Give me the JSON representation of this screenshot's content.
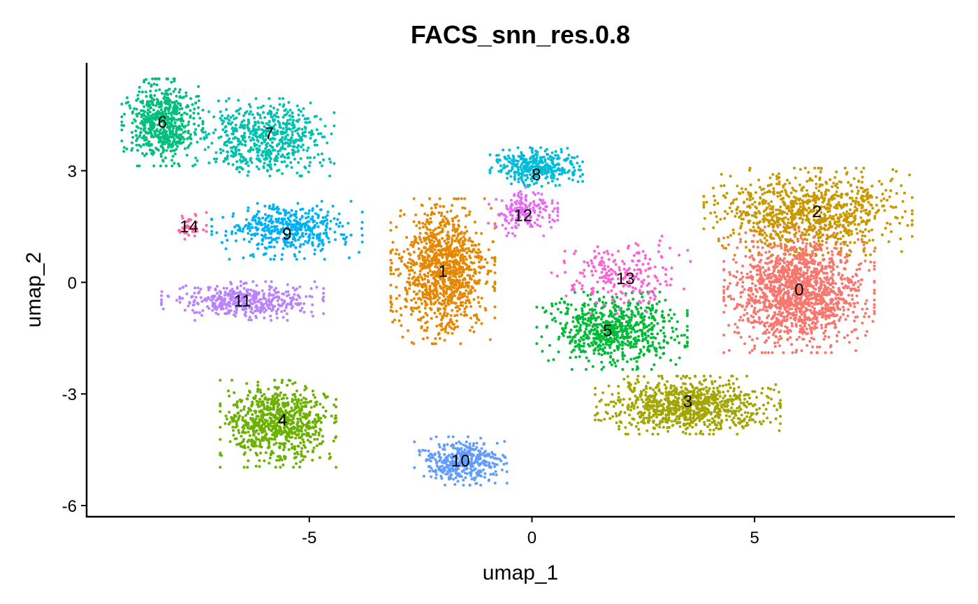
{
  "chart_data": {
    "type": "scatter",
    "title": "FACS_snn_res.0.8",
    "xlabel": "umap_1",
    "ylabel": "umap_2",
    "xlim": [
      -10,
      9.5
    ],
    "ylim": [
      -6.3,
      5.9
    ],
    "x_ticks": [
      {
        "value": -5,
        "label": "-5"
      },
      {
        "value": 0,
        "label": "0"
      },
      {
        "value": 5,
        "label": "5"
      }
    ],
    "y_ticks": [
      {
        "value": -6,
        "label": "-6"
      },
      {
        "value": -3,
        "label": "-3"
      },
      {
        "value": 0,
        "label": "0"
      },
      {
        "value": 3,
        "label": "3"
      }
    ],
    "grid": false,
    "legend": "none",
    "clusters": [
      {
        "id": "0",
        "label": "0",
        "color": "#F8766D",
        "center": [
          6.0,
          -0.2
        ],
        "spread": [
          1.3,
          1.3
        ],
        "count": 1500
      },
      {
        "id": "1",
        "label": "1",
        "color": "#E58700",
        "center": [
          -2.0,
          0.3
        ],
        "spread": [
          0.9,
          1.5
        ],
        "count": 1100
      },
      {
        "id": "2",
        "label": "2",
        "color": "#C99800",
        "center": [
          6.2,
          1.9
        ],
        "spread": [
          1.8,
          0.9
        ],
        "count": 900
      },
      {
        "id": "3",
        "label": "3",
        "color": "#A3A500",
        "center": [
          3.5,
          -3.3
        ],
        "spread": [
          1.6,
          0.6
        ],
        "count": 900
      },
      {
        "id": "4",
        "label": "4",
        "color": "#6BB100",
        "center": [
          -5.7,
          -3.8
        ],
        "spread": [
          1.0,
          0.9
        ],
        "count": 800
      },
      {
        "id": "5",
        "label": "5",
        "color": "#00BA38",
        "center": [
          1.8,
          -1.3
        ],
        "spread": [
          1.3,
          0.8
        ],
        "count": 700
      },
      {
        "id": "6",
        "label": "6",
        "color": "#00BF7D",
        "center": [
          -8.3,
          4.3
        ],
        "spread": [
          0.7,
          0.9
        ],
        "count": 600
      },
      {
        "id": "7",
        "label": "7",
        "color": "#00C0AF",
        "center": [
          -6.0,
          3.9
        ],
        "spread": [
          1.2,
          0.8
        ],
        "count": 600
      },
      {
        "id": "8",
        "label": "8",
        "color": "#00BCD8",
        "center": [
          0.1,
          3.1
        ],
        "spread": [
          0.8,
          0.4
        ],
        "count": 350
      },
      {
        "id": "9",
        "label": "9",
        "color": "#00B0F6",
        "center": [
          -5.5,
          1.4
        ],
        "spread": [
          1.3,
          0.6
        ],
        "count": 450
      },
      {
        "id": "10",
        "label": "10",
        "color": "#619CFF",
        "center": [
          -1.6,
          -4.8
        ],
        "spread": [
          0.8,
          0.5
        ],
        "count": 400
      },
      {
        "id": "11",
        "label": "11",
        "color": "#B983FF",
        "center": [
          -6.5,
          -0.5
        ],
        "spread": [
          1.4,
          0.4
        ],
        "count": 450
      },
      {
        "id": "12",
        "label": "12",
        "color": "#E76BF3",
        "center": [
          -0.2,
          1.9
        ],
        "spread": [
          0.6,
          0.5
        ],
        "count": 180
      },
      {
        "id": "13",
        "label": "13",
        "color": "#FD61D1",
        "center": [
          2.0,
          0.2
        ],
        "spread": [
          1.2,
          0.8
        ],
        "count": 220
      },
      {
        "id": "14",
        "label": "14",
        "color": "#FF67A4",
        "center": [
          -7.7,
          1.5
        ],
        "spread": [
          0.3,
          0.3
        ],
        "count": 40
      }
    ],
    "label_positions": [
      {
        "id": "0",
        "x": 6.0,
        "y": -0.2
      },
      {
        "id": "1",
        "x": -2.0,
        "y": 0.3
      },
      {
        "id": "2",
        "x": 6.4,
        "y": 1.9
      },
      {
        "id": "3",
        "x": 3.5,
        "y": -3.2
      },
      {
        "id": "4",
        "x": -5.6,
        "y": -3.7
      },
      {
        "id": "5",
        "x": 1.7,
        "y": -1.3
      },
      {
        "id": "6",
        "x": -8.3,
        "y": 4.3
      },
      {
        "id": "7",
        "x": -5.9,
        "y": 4.0
      },
      {
        "id": "8",
        "x": 0.1,
        "y": 2.9
      },
      {
        "id": "9",
        "x": -5.5,
        "y": 1.3
      },
      {
        "id": "10",
        "x": -1.6,
        "y": -4.8
      },
      {
        "id": "11",
        "x": -6.5,
        "y": -0.5
      },
      {
        "id": "12",
        "x": -0.2,
        "y": 1.8
      },
      {
        "id": "13",
        "x": 2.1,
        "y": 0.1
      },
      {
        "id": "14",
        "x": -7.7,
        "y": 1.5
      }
    ]
  }
}
